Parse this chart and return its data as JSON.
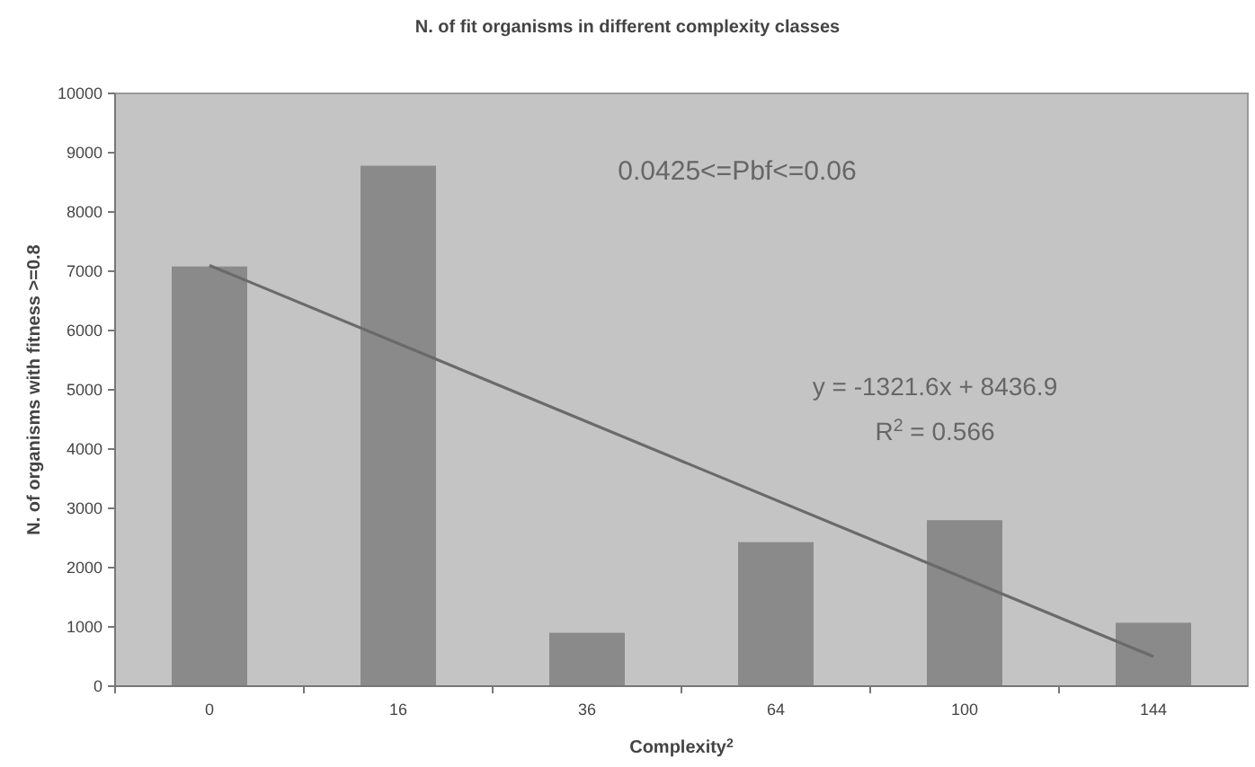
{
  "chart_data": {
    "type": "bar",
    "title": "N. of fit organisms in different complexity classes",
    "xlabel": "Complexity$^{2}$",
    "ylabel": "N. of organisms with fitness >=0.8",
    "categories": [
      "0",
      "16",
      "36",
      "64",
      "100",
      "144"
    ],
    "series": [
      {
        "color": "#8a8a8a",
        "values": [
          7080,
          8780,
          900,
          2430,
          2800,
          1070
        ]
      },
      {
        "type": "line",
        "color": "#6a6a6a",
        "x": [
          "0",
          "144"
        ],
        "values": [
          7100,
          500
        ]
      }
    ],
    "ylim": [
      0,
      10000
    ],
    "yticks": [
      0,
      1000,
      2000,
      3000,
      4000,
      5000,
      6000,
      7000,
      8000,
      9000,
      10000
    ],
    "grid": false,
    "annotations": [
      "0.0425<=Pbf<=0.06",
      "y = -1321.6x + 8436.9",
      "R$^{2}$ = 0.566"
    ]
  }
}
